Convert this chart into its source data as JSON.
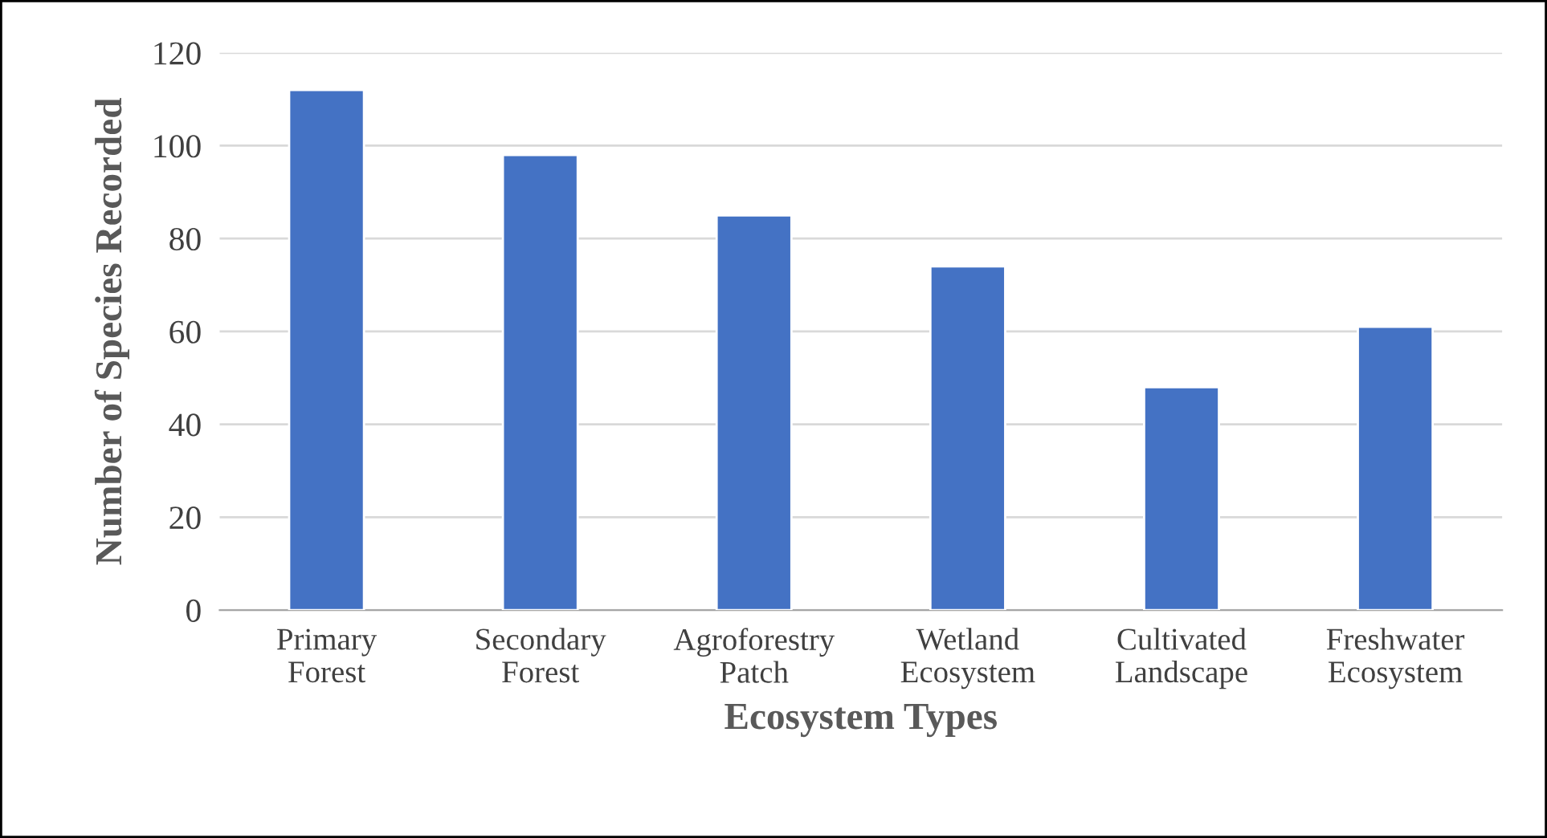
{
  "chart_data": {
    "type": "bar",
    "xlabel": "Ecosystem Types",
    "ylabel": "Number of Species Recorded",
    "categories": [
      "Primary Forest",
      "Secondary Forest",
      "Agroforestry Patch",
      "Wetland Ecosystem",
      "Cultivated Landscape",
      "Freshwater Ecosystem"
    ],
    "values": [
      112,
      98,
      85,
      74,
      48,
      61
    ],
    "color": "#4472c4",
    "ylim": [
      0,
      120
    ],
    "yticks": [
      0,
      20,
      40,
      60,
      80,
      100,
      120
    ],
    "grid": "y"
  }
}
